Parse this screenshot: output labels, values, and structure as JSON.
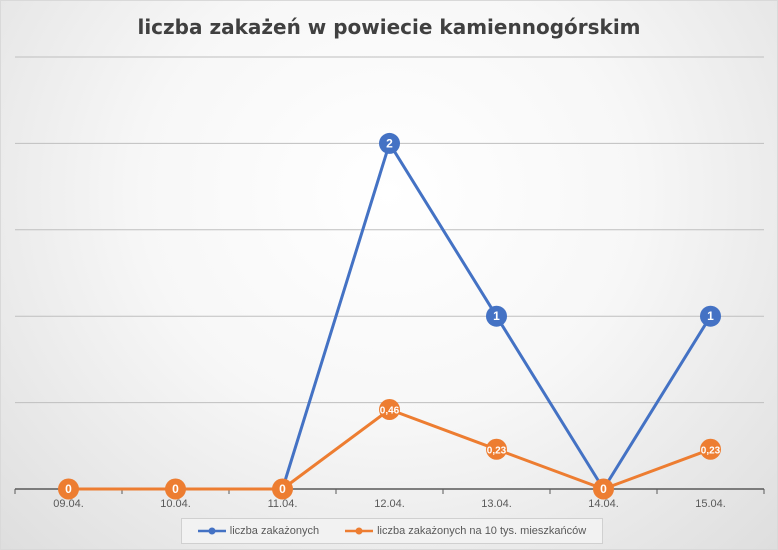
{
  "chart_data": {
    "type": "line",
    "title": "liczba zakażeń w powiecie kamiennogórskim",
    "categories": [
      "09.04.",
      "10.04.",
      "11.04.",
      "12.04.",
      "13.04.",
      "14.04.",
      "15.04."
    ],
    "series": [
      {
        "name": "liczba zakażonych",
        "color": "#4472c4",
        "values": [
          0,
          0,
          0,
          2,
          1,
          0,
          1
        ],
        "labels": [
          "",
          "",
          "",
          "2",
          "1",
          "",
          "1"
        ]
      },
      {
        "name": "liczba zakażonych na 10 tys. mieszkańców",
        "color": "#ed7d31",
        "values": [
          0,
          0,
          0,
          0.46,
          0.23,
          0,
          0.23
        ],
        "labels": [
          "0",
          "0",
          "0",
          "0,46",
          "0,23",
          "0",
          "0,23"
        ]
      }
    ],
    "ylim": [
      0,
      2.5
    ],
    "grid": true,
    "legend_position": "bottom"
  }
}
